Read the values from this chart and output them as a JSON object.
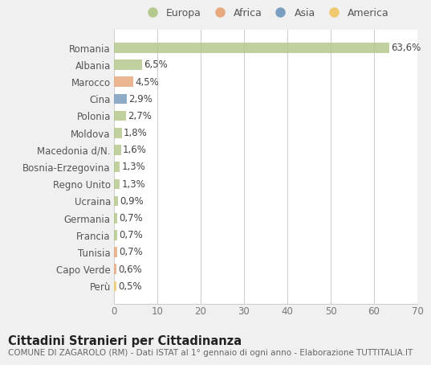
{
  "countries": [
    "Romania",
    "Albania",
    "Marocco",
    "Cina",
    "Polonia",
    "Moldova",
    "Macedonia d/N.",
    "Bosnia-Erzegovina",
    "Regno Unito",
    "Ucraina",
    "Germania",
    "Francia",
    "Tunisia",
    "Capo Verde",
    "Perù"
  ],
  "values": [
    63.6,
    6.5,
    4.5,
    2.9,
    2.7,
    1.8,
    1.6,
    1.3,
    1.3,
    0.9,
    0.7,
    0.7,
    0.7,
    0.6,
    0.5
  ],
  "labels": [
    "63,6%",
    "6,5%",
    "4,5%",
    "2,9%",
    "2,7%",
    "1,8%",
    "1,6%",
    "1,3%",
    "1,3%",
    "0,9%",
    "0,7%",
    "0,7%",
    "0,7%",
    "0,6%",
    "0,5%"
  ],
  "colors": [
    "#b5c98e",
    "#b5c98e",
    "#e8a97e",
    "#7a9ebf",
    "#b5c98e",
    "#b5c98e",
    "#b5c98e",
    "#b5c98e",
    "#b5c98e",
    "#b5c98e",
    "#b5c98e",
    "#b5c98e",
    "#e8a97e",
    "#e8a97e",
    "#f0c96e"
  ],
  "legend_labels": [
    "Europa",
    "Africa",
    "Asia",
    "America"
  ],
  "legend_colors": [
    "#b5c98e",
    "#e8a97e",
    "#7a9ebf",
    "#f0c96e"
  ],
  "xlim": [
    0,
    70
  ],
  "xticks": [
    0,
    10,
    20,
    30,
    40,
    50,
    60,
    70
  ],
  "title_main": "Cittadini Stranieri per Cittadinanza",
  "title_sub": "COMUNE DI ZAGAROLO (RM) - Dati ISTAT al 1° gennaio di ogni anno - Elaborazione TUTTITALIA.IT",
  "bg_color": "#f0f0f0",
  "plot_bg_color": "#ffffff",
  "grid_color": "#cccccc",
  "bar_height": 0.6,
  "label_fontsize": 8.5,
  "tick_fontsize": 8.5,
  "title_main_fontsize": 10.5,
  "title_sub_fontsize": 7.5
}
